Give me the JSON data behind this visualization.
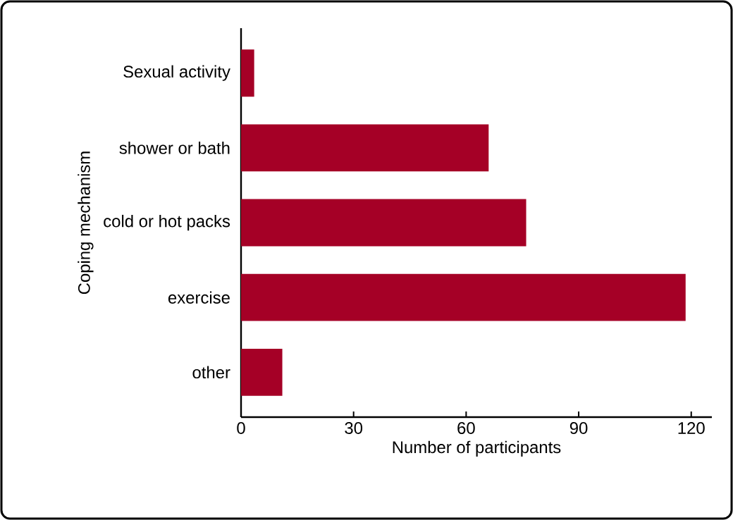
{
  "chart_data": {
    "type": "bar",
    "orientation": "horizontal",
    "xlabel": "Number of participants",
    "ylabel": "Coping mechanism",
    "categories": [
      "Sexual activity",
      "shower or bath",
      "cold or hot packs",
      "exercise",
      "other"
    ],
    "values": [
      3.5,
      66,
      76,
      118.5,
      11
    ],
    "color": "#a50026",
    "xlim": [
      0,
      125.5
    ],
    "xticks": [
      0,
      30,
      60,
      90,
      120
    ]
  }
}
